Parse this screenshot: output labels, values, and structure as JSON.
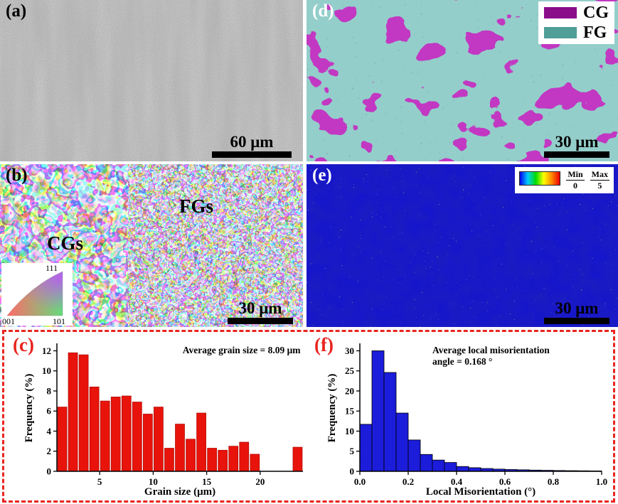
{
  "panels": {
    "a": {
      "label": "(a)",
      "scale_text": "60 μm"
    },
    "b": {
      "label": "(b)",
      "scale_text": "30 μm",
      "annotation_cgs": "CGs",
      "annotation_fgs": "FGs",
      "ipf_legend": {
        "top_right": "111",
        "bottom_left": "001",
        "bottom_right": "101"
      }
    },
    "c": {
      "label": "(c)"
    },
    "d": {
      "label": "(d)",
      "scale_text": "30 μm",
      "legend": [
        {
          "label": "CG",
          "color": "#8a0d8a"
        },
        {
          "label": "FG",
          "color": "#4f9e97"
        }
      ]
    },
    "e": {
      "label": "(e)",
      "scale_text": "30 μm",
      "colorbar": {
        "min_label": "Min",
        "min_value": "0",
        "max_label": "Max",
        "max_value": "5"
      }
    },
    "f": {
      "label": "(f)"
    }
  },
  "colors": {
    "dashed_box": "#e8251f",
    "cg_purple": "#8a0d8a",
    "fg_teal": "#4f9e97",
    "hist_c_bar": "#e8130b",
    "hist_f_bar": "#1c1cdb",
    "misorientation_base": "#1414cf",
    "colorbar_stops": [
      "#0000ee",
      "#00ccff",
      "#00dd00",
      "#ffff00",
      "#ff8800",
      "#ee0000"
    ]
  },
  "chart_data": [
    {
      "id": "c",
      "type": "bar",
      "annotation_lines": [
        "Average grain size = 8.09 μm"
      ],
      "xlabel": "Grain size (μm)",
      "ylabel": "Frequency (%)",
      "bar_color": "#e8130b",
      "bar_edge": "#b30d07",
      "x_start": 1,
      "bin_width": 1,
      "values": [
        6.4,
        11.8,
        11.6,
        8.4,
        7.0,
        7.4,
        7.5,
        6.9,
        5.7,
        6.4,
        2.3,
        4.7,
        3.2,
        5.8,
        2.3,
        2.1,
        2.5,
        2.9,
        1.7,
        0,
        0,
        0,
        2.4
      ],
      "xlim": [
        1,
        24
      ],
      "ylim": [
        0,
        12.6
      ],
      "xticks": [
        5,
        10,
        15,
        20
      ],
      "xtick_labels": [
        "5",
        "10",
        "15",
        "20"
      ],
      "yticks": [
        0,
        2,
        4,
        6,
        8,
        10,
        12
      ],
      "grid": false,
      "legend_position": "none",
      "bar_gap_frac": 0.14,
      "ann": {
        "x_frac": 0.99,
        "anchor": "end",
        "y": 12
      }
    },
    {
      "id": "f",
      "type": "bar",
      "annotation_lines": [
        "Average local misorientation",
        "angle = 0.168 °"
      ],
      "xlabel": "Local Misorientation (°)",
      "ylabel": "Frequency (%)",
      "bar_color": "#1c1cdb",
      "bar_edge": "#000000",
      "x_start": 0,
      "bin_width": 0.05,
      "values": [
        11.7,
        30.0,
        24.6,
        14.5,
        7.8,
        4.2,
        2.8,
        2.2,
        1.2,
        0.9,
        0.7,
        0.55,
        0.45,
        0.38,
        0.3,
        0.25,
        0.2,
        0.16,
        0.13,
        0.1
      ],
      "xlim": [
        0,
        1.0
      ],
      "ylim": [
        0,
        31.5
      ],
      "xticks": [
        0,
        0.2,
        0.4,
        0.6,
        0.8,
        1.0
      ],
      "xtick_labels": [
        "0.0",
        "0.2",
        "0.4",
        "0.6",
        "0.8",
        "1.0"
      ],
      "yticks": [
        0,
        5,
        10,
        15,
        20,
        25,
        30
      ],
      "grid": false,
      "legend_position": "none",
      "bar_gap_frac": 0,
      "ann": {
        "x_frac": 0.3,
        "anchor": "start",
        "y": 12
      }
    }
  ]
}
